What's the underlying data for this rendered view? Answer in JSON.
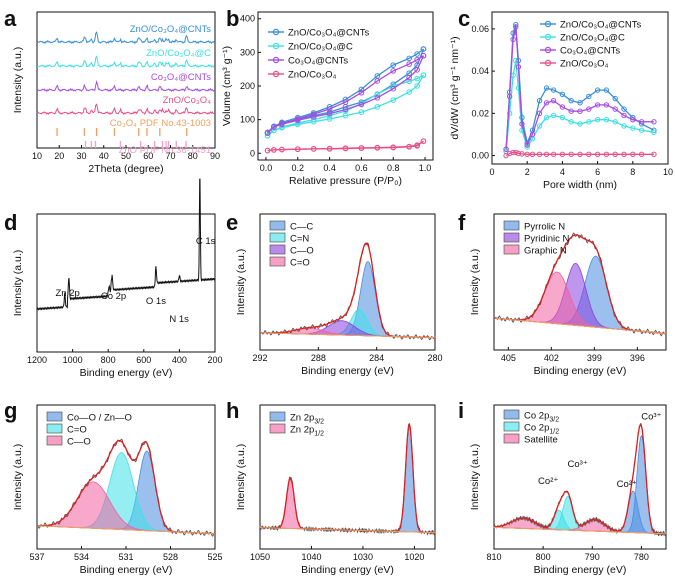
{
  "chart_data": [
    {
      "id": "a",
      "type": "line",
      "title": "",
      "xlabel": "2Theta (degree)",
      "ylabel": "Intensity (a.u.)",
      "xlim": [
        10,
        90
      ],
      "xticks": [
        10,
        20,
        30,
        40,
        50,
        60,
        70,
        80,
        90
      ],
      "traces": [
        {
          "name": "ZnO/Co3O4@CNTs",
          "label_text": "ZnO/Co₃O₄@CNTs",
          "color": "#3a8fd8"
        },
        {
          "name": "ZnO/Co3O4@C",
          "label_text": "ZnO/Co₃O₄@C",
          "color": "#3fe0e0"
        },
        {
          "name": "Co3O4@CNTs",
          "label_text": "Co₃O₄@CNTs",
          "color": "#a64de0"
        },
        {
          "name": "ZnO/Co3O4",
          "label_text": "ZnO/Co₃O₄",
          "color": "#e8508a"
        }
      ],
      "references": [
        {
          "name": "Co3O4 PDF No.43-1003",
          "label_text": "Co₃O₄ PDF No.43-1003",
          "color": "#f0a060",
          "positions": [
            19.0,
            31.3,
            36.8,
            44.8,
            55.7,
            59.4,
            65.2,
            77.3
          ]
        },
        {
          "name": "ZnO PDF No.36-1451",
          "label_text": "ZnO PDF No.36-1451",
          "color": "#f2a0c8",
          "positions": [
            31.8,
            34.4,
            36.3,
            47.5,
            56.6,
            62.9,
            66.4,
            68.0,
            69.1,
            72.6,
            77.0
          ]
        }
      ]
    },
    {
      "id": "b",
      "type": "line",
      "title": "",
      "xlabel": "Relative pressure (P/P₀)",
      "ylabel": "Volume (cm³ g⁻¹)",
      "xlim": [
        -0.05,
        1.05
      ],
      "ylim": [
        -20,
        420
      ],
      "xticks": [
        0.0,
        0.2,
        0.4,
        0.6,
        0.8,
        1.0
      ],
      "xtick_labels": [
        "0.0",
        "0.2",
        "0.4",
        "0.6",
        "0.8",
        "1.0"
      ],
      "yticks": [
        0,
        100,
        200,
        300,
        400
      ],
      "series": [
        {
          "name": "ZnO/Co₃O₄@CNTs",
          "color": "#3a8fd8",
          "x": [
            0.01,
            0.05,
            0.1,
            0.2,
            0.3,
            0.4,
            0.5,
            0.6,
            0.7,
            0.8,
            0.9,
            0.95,
            0.99
          ],
          "adsorption": [
            62,
            80,
            90,
            100,
            112,
            122,
            138,
            152,
            175,
            205,
            238,
            262,
            310
          ],
          "desorption": [
            62,
            80,
            92,
            106,
            120,
            138,
            160,
            190,
            230,
            262,
            282,
            295,
            310
          ]
        },
        {
          "name": "ZnO/Co₃O₄@C",
          "color": "#3fe0e0",
          "x": [
            0.01,
            0.05,
            0.1,
            0.2,
            0.3,
            0.4,
            0.5,
            0.6,
            0.7,
            0.8,
            0.9,
            0.95,
            0.99
          ],
          "adsorption": [
            52,
            68,
            76,
            86,
            94,
            102,
            112,
            122,
            138,
            158,
            182,
            200,
            232
          ],
          "desorption": [
            52,
            68,
            78,
            90,
            100,
            112,
            126,
            148,
            176,
            200,
            214,
            222,
            232
          ]
        },
        {
          "name": "Co₃O₄@CNTs",
          "color": "#a64de0",
          "x": [
            0.01,
            0.05,
            0.1,
            0.2,
            0.3,
            0.4,
            0.5,
            0.6,
            0.7,
            0.8,
            0.9,
            0.95,
            0.99
          ],
          "adsorption": [
            60,
            78,
            86,
            98,
            108,
            118,
            130,
            145,
            165,
            192,
            225,
            248,
            290
          ],
          "desorption": [
            60,
            78,
            88,
            102,
            116,
            132,
            152,
            180,
            215,
            245,
            265,
            278,
            290
          ]
        },
        {
          "name": "ZnO/Co₃O₄",
          "color": "#e8508a",
          "x": [
            0.01,
            0.05,
            0.1,
            0.2,
            0.3,
            0.4,
            0.5,
            0.6,
            0.7,
            0.8,
            0.9,
            0.95,
            0.99
          ],
          "adsorption": [
            8,
            10,
            11,
            12,
            13,
            13,
            14,
            15,
            16,
            17,
            19,
            22,
            36
          ],
          "desorption": [
            8,
            10,
            11,
            12,
            13,
            14,
            15,
            16,
            17,
            18,
            20,
            24,
            36
          ]
        }
      ]
    },
    {
      "id": "c",
      "type": "line",
      "title": "",
      "xlabel": "Pore width (nm)",
      "ylabel": "dV/dW (cm³ g⁻¹ nm⁻¹)",
      "xlim": [
        0,
        10
      ],
      "ylim": [
        -0.004,
        0.068
      ],
      "xticks": [
        0,
        2,
        4,
        6,
        8,
        10
      ],
      "yticks": [
        0.0,
        0.02,
        0.04,
        0.06
      ],
      "ytick_labels": [
        "0.00",
        "0.02",
        "0.04",
        "0.06"
      ],
      "series": [
        {
          "name": "ZnO/Co₃O₄@CNTs",
          "color": "#3a8fd8",
          "x": [
            0.8,
            1.0,
            1.2,
            1.35,
            1.5,
            1.7,
            2.0,
            2.3,
            2.7,
            3.1,
            3.5,
            4.0,
            4.5,
            5.0,
            5.5,
            6.0,
            6.5,
            7.0,
            7.5,
            8.0,
            8.5,
            9.2
          ],
          "y": [
            0.003,
            0.03,
            0.058,
            0.062,
            0.045,
            0.018,
            0.006,
            0.012,
            0.026,
            0.032,
            0.031,
            0.029,
            0.026,
            0.025,
            0.028,
            0.031,
            0.031,
            0.027,
            0.022,
            0.018,
            0.015,
            0.012
          ]
        },
        {
          "name": "ZnO/Co₃O₄@C",
          "color": "#3fe0e0",
          "x": [
            0.8,
            1.0,
            1.2,
            1.35,
            1.5,
            1.7,
            2.0,
            2.3,
            2.7,
            3.1,
            3.5,
            4.0,
            4.5,
            5.0,
            5.5,
            6.0,
            6.5,
            7.0,
            7.5,
            8.0,
            8.5,
            9.2
          ],
          "y": [
            0.002,
            0.02,
            0.038,
            0.045,
            0.032,
            0.012,
            0.004,
            0.008,
            0.014,
            0.018,
            0.019,
            0.018,
            0.016,
            0.015,
            0.016,
            0.017,
            0.017,
            0.016,
            0.014,
            0.013,
            0.012,
            0.011
          ]
        },
        {
          "name": "Co₃O₄@CNTs",
          "color": "#a64de0",
          "x": [
            0.8,
            1.0,
            1.2,
            1.35,
            1.5,
            1.7,
            2.0,
            2.3,
            2.7,
            3.1,
            3.5,
            4.0,
            4.5,
            5.0,
            5.5,
            6.0,
            6.5,
            7.0,
            7.5,
            8.0,
            8.5,
            9.2
          ],
          "y": [
            0.003,
            0.028,
            0.055,
            0.061,
            0.042,
            0.015,
            0.005,
            0.01,
            0.02,
            0.025,
            0.026,
            0.023,
            0.021,
            0.021,
            0.022,
            0.024,
            0.024,
            0.022,
            0.019,
            0.017,
            0.016,
            0.016
          ]
        },
        {
          "name": "ZnO/Co₃O₄",
          "color": "#e8508a",
          "x": [
            0.8,
            1.0,
            1.2,
            1.35,
            1.5,
            1.7,
            2.0,
            2.3,
            2.7,
            3.1,
            3.5,
            4.0,
            4.5,
            5.0,
            5.5,
            6.0,
            6.5,
            7.0,
            7.5,
            8.0,
            8.5,
            9.2
          ],
          "y": [
            0.0,
            0.001,
            0.0015,
            0.0015,
            0.001,
            0.0008,
            0.0006,
            0.0006,
            0.0006,
            0.0006,
            0.0006,
            0.0006,
            0.0006,
            0.0006,
            0.0006,
            0.0006,
            0.0006,
            0.0006,
            0.0006,
            0.0006,
            0.0006,
            0.0006
          ]
        }
      ]
    },
    {
      "id": "d",
      "type": "line",
      "title": "",
      "xlabel": "Binding energy (eV)",
      "ylabel": "Intensity (a.u.)",
      "xlim": [
        1200,
        200
      ],
      "xticks": [
        1200,
        1000,
        800,
        600,
        400,
        200
      ],
      "xtick_labels": [
        "1200",
        "1000",
        "800",
        "600",
        "400",
        "200"
      ],
      "color": "#111111",
      "annotations": [
        {
          "text": "Zn 2p",
          "x": 1040
        },
        {
          "text": "Co 2p",
          "x": 785
        },
        {
          "text": "O 1s",
          "x": 532
        },
        {
          "text": "N 1s",
          "x": 400
        },
        {
          "text": "C 1s",
          "x": 285
        }
      ]
    },
    {
      "id": "e",
      "type": "line",
      "title": "",
      "xlabel": "Binding energy (eV)",
      "ylabel": "Intensity (a.u.)",
      "xlim": [
        292,
        280
      ],
      "xticks": [
        292,
        288,
        284,
        280
      ],
      "components": [
        {
          "name": "C—C",
          "center": 284.6,
          "height": 0.62,
          "width": 0.5,
          "color": "#4a8ce0"
        },
        {
          "name": "C=N",
          "center": 285.2,
          "height": 0.22,
          "width": 0.55,
          "color": "#3ee0e8"
        },
        {
          "name": "C—O",
          "center": 286.4,
          "height": 0.12,
          "width": 0.9,
          "color": "#8a40e0"
        },
        {
          "name": "C=O",
          "center": 288.6,
          "height": 0.05,
          "width": 1.0,
          "color": "#f060a0"
        }
      ]
    },
    {
      "id": "f",
      "type": "line",
      "title": "",
      "xlabel": "Binding energy (eV)",
      "ylabel": "Intensity (a.u.)",
      "xlim": [
        406,
        394
      ],
      "xticks": [
        405,
        402,
        399,
        396
      ],
      "components": [
        {
          "name": "Pyrrolic N",
          "center": 398.9,
          "height": 0.55,
          "width": 0.75,
          "color": "#4a8ce0"
        },
        {
          "name": "Pyridinic N",
          "center": 400.3,
          "height": 0.48,
          "width": 0.7,
          "color": "#8a40e0"
        },
        {
          "name": "Graphic N",
          "center": 401.6,
          "height": 0.4,
          "width": 0.85,
          "color": "#f060a0"
        }
      ]
    },
    {
      "id": "g",
      "type": "line",
      "title": "",
      "xlabel": "Binding energy (eV)",
      "ylabel": "Intensity (a.u.)",
      "xlim": [
        537,
        525
      ],
      "xticks": [
        537,
        534,
        531,
        528,
        525
      ],
      "components": [
        {
          "name": "Co—O / Zn—O",
          "center": 529.6,
          "height": 0.6,
          "width": 0.55,
          "color": "#4a8ce0"
        },
        {
          "name": "C=O",
          "center": 531.3,
          "height": 0.58,
          "width": 0.8,
          "color": "#3ee0e8"
        },
        {
          "name": "C—O",
          "center": 533.2,
          "height": 0.35,
          "width": 1.1,
          "color": "#f060a0"
        }
      ]
    },
    {
      "id": "h",
      "type": "line",
      "title": "",
      "xlabel": "Binding energy (eV)",
      "ylabel": "Intensity (a.u.)",
      "xlim": [
        1050,
        1016
      ],
      "xticks": [
        1050,
        1040,
        1030,
        1020
      ],
      "components": [
        {
          "name": "Zn 2p3/2",
          "label_text": "Zn 2p",
          "label_sub": "3/2",
          "center": 1021.0,
          "height": 0.85,
          "width": 0.7,
          "color": "#4a8ce0"
        },
        {
          "name": "Zn 2p1/2",
          "label_text": "Zn 2p",
          "label_sub": "1/2",
          "center": 1044.1,
          "height": 0.4,
          "width": 0.75,
          "color": "#f060a0"
        }
      ]
    },
    {
      "id": "i",
      "type": "line",
      "title": "",
      "xlabel": "Binding energy (eV)",
      "ylabel": "Intensity (a.u.)",
      "xlim": [
        810,
        775
      ],
      "xticks": [
        810,
        800,
        790,
        780
      ],
      "components": [
        {
          "name": "Co 2p3/2",
          "label_text": "Co 2p",
          "label_sub": "3/2",
          "color": "#4a8ce0",
          "peaks": [
            {
              "center": 780.0,
              "height": 0.75,
              "width": 0.9
            },
            {
              "center": 781.7,
              "height": 0.32,
              "width": 1.0
            }
          ]
        },
        {
          "name": "Co 2p1/2",
          "label_text": "Co 2p",
          "label_sub": "1/2",
          "color": "#3ee0e8",
          "peaks": [
            {
              "center": 795.0,
              "height": 0.26,
              "width": 1.0
            },
            {
              "center": 796.8,
              "height": 0.15,
              "width": 1.0
            }
          ]
        },
        {
          "name": "Satellite",
          "color": "#f060a0",
          "peaks": [
            {
              "center": 789.5,
              "height": 0.09,
              "width": 2.0
            },
            {
              "center": 804.0,
              "height": 0.08,
              "width": 2.4
            }
          ]
        }
      ],
      "annotations": [
        {
          "text": "Co³⁺",
          "x": 778
        },
        {
          "text": "Co²⁺",
          "x": 783
        },
        {
          "text": "Co³⁺",
          "x": 793
        },
        {
          "text": "Co²⁺",
          "x": 799
        }
      ]
    }
  ]
}
